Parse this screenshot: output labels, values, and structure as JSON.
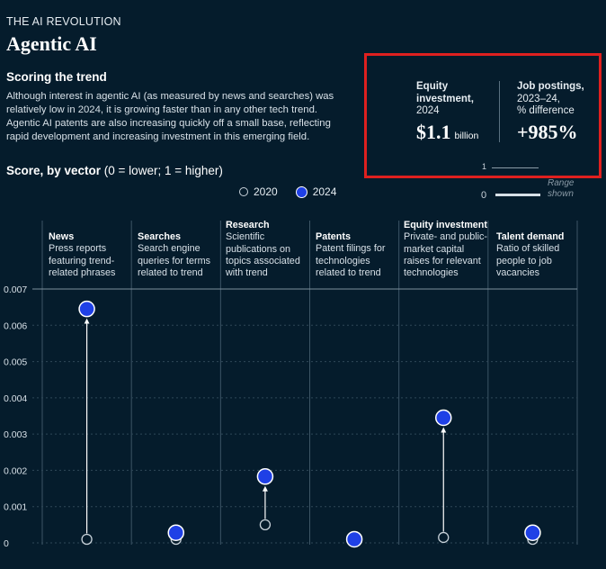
{
  "header": {
    "eyebrow": "THE AI REVOLUTION",
    "title": "Agentic AI"
  },
  "section_heading": "Scoring the trend",
  "intro": "Although interest in agentic AI (as measured by news and searches) was relatively low in 2024, it is growing faster than in any other tech trend. Agentic AI patents are also increasing quickly off a small base, reflecting rapid development and increasing investment in this emerging field.",
  "score_heading": {
    "bold": "Score, by vector",
    "rest": " (0 = lower; 1 = higher)"
  },
  "legend": {
    "open_label": "2020",
    "filled_label": "2024"
  },
  "callout": {
    "equity_label_bold_1": "Equity",
    "equity_label_bold_2": "investment,",
    "equity_label_year": "2024",
    "equity_value": "$1.1",
    "equity_unit": "billion",
    "jobs_label_bold": "Job postings,",
    "jobs_label_line2": "2023–24,",
    "jobs_label_line3": "% difference",
    "jobs_value": "+985%"
  },
  "range": {
    "top_label": "1",
    "bottom_label": "0",
    "caption_line1": "Range",
    "caption_line2": "shown"
  },
  "vectors": [
    {
      "name": "News",
      "description": "Press reports featuring trend-related phrases"
    },
    {
      "name": "Searches",
      "description": "Search engine queries for terms related to trend"
    },
    {
      "name": "Research",
      "description": "Scientific publications on topics associated with trend"
    },
    {
      "name": "Patents",
      "description": "Patent filings for technologies related to trend"
    },
    {
      "name": "Equity investment",
      "description": "Private- and public-market capital raises for relevant technologies"
    },
    {
      "name": "Talent demand",
      "description": "Ratio of skilled people to job vacancies"
    }
  ],
  "colors": {
    "background": "#051c2c",
    "point_2024": "#1f40e6",
    "callout_border": "#e0201f"
  },
  "chart_data": {
    "type": "scatter",
    "title": "Score, by vector (0 = lower; 1 = higher)",
    "categories": [
      "News",
      "Searches",
      "Research",
      "Patents",
      "Equity investment",
      "Talent demand"
    ],
    "series": [
      {
        "name": "2020",
        "values": [
          0.0001,
          0.0001,
          0.0005,
          5e-05,
          0.00015,
          0.0001
        ]
      },
      {
        "name": "2024",
        "values": [
          0.00645,
          0.00028,
          0.00183,
          0.0001,
          0.00345,
          0.00028
        ]
      }
    ],
    "ylim": [
      0,
      0.007
    ],
    "yticks": [
      "0",
      "0.001",
      "0.002",
      "0.003",
      "0.004",
      "0.005",
      "0.006",
      "0.007"
    ],
    "grid": true,
    "legend_position": "top"
  }
}
